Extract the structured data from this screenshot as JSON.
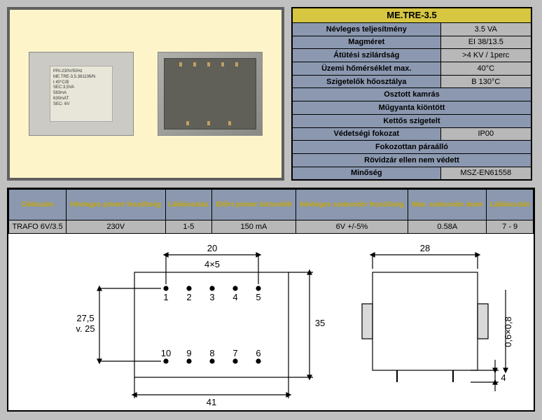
{
  "photo": {
    "label_lines": [
      "PRI-230V/50Hz",
      "ME.TRE-3,5.381106/N",
      "",
      "t 40°C/B",
      "SEC:3,5VA",
      "583mA",
      "630mAT",
      "IP00",
      "SEC- 6V"
    ]
  },
  "spec": {
    "title": "ME.TRE-3.5",
    "rows": [
      {
        "label": "Névleges teljesítmény",
        "value": "3.5 VA"
      },
      {
        "label": "Magméret",
        "value": "EI 38/13.5"
      },
      {
        "label": "Átütési szilárdság",
        "value": ">4 KV / 1perc"
      },
      {
        "label": "Üzemi hőmérséklet max.",
        "value": "40°C"
      },
      {
        "label": "Szigetelők hőosztálya",
        "value": "B 130°C"
      },
      {
        "label": "Osztott kamrás",
        "value": ""
      },
      {
        "label": "Műgyanta kiöntött",
        "value": ""
      },
      {
        "label": "Kettős szigetelt",
        "value": ""
      },
      {
        "label": "Védetségi fokozat",
        "value": "IP00"
      },
      {
        "label": "Fokozottan páraálló",
        "value": ""
      },
      {
        "label": "Rövidzár ellen nem védett",
        "value": ""
      },
      {
        "label": "Minőség",
        "value": "MSZ-EN61558"
      }
    ]
  },
  "part": {
    "headers": [
      "Cikkszám",
      "Névleges primer feszültség",
      "Lábkiosztás",
      "Előírt primer biztosíték",
      "Névleges szekunder feszültség",
      "Max. szekunder áram",
      "Lábkiosztás"
    ],
    "row": [
      "TRAFO 6V/3.5",
      "230V",
      "1-5",
      "150 mA",
      "6V +/-5%",
      "0.58A",
      "7 - 9"
    ]
  },
  "diagram": {
    "dims": {
      "w1": "20",
      "pitch": "4×5",
      "h1": "27,5",
      "h1_alt": "v. 25",
      "w_full": "41",
      "h_full": "35",
      "w2": "28",
      "pin_d": "0,6×0,8",
      "pin_h": "4"
    },
    "pins_top": [
      "1",
      "2",
      "3",
      "4",
      "5"
    ],
    "pins_bot": [
      "10",
      "9",
      "8",
      "7",
      "6"
    ],
    "colors": {
      "stroke": "#000000",
      "fill_pin": "#000000",
      "bg": "#ffffff"
    }
  }
}
